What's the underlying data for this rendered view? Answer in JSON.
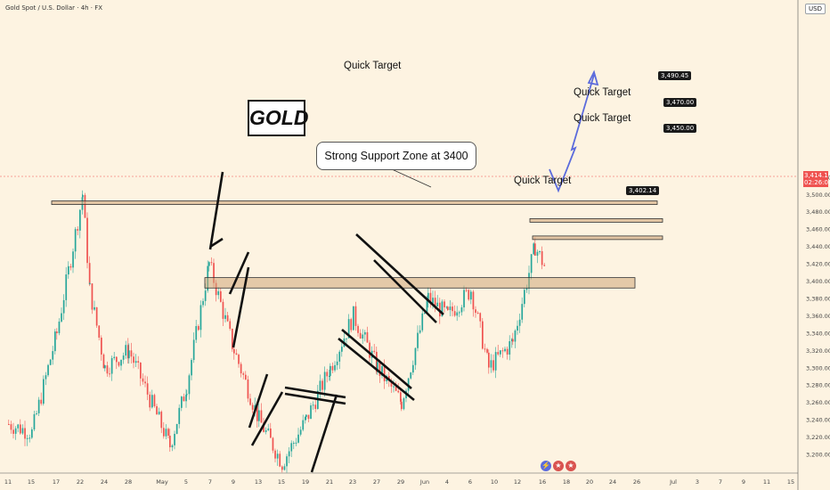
{
  "header": {
    "title": "Gold Spot / U.S. Dollar · 4h · FX",
    "currency": "USD"
  },
  "annotations": {
    "gold": "GOLD",
    "callout": "Strong Support Zone at 3400",
    "quick_target": "Quick Target"
  },
  "price_labels": {
    "t1": "3,490.45",
    "t2": "3,470.00",
    "t3": "3,450.00",
    "t4": "3,402.14",
    "current": "3,414.19",
    "countdown": "02:26:08"
  },
  "colors": {
    "up": "#26a69a",
    "down": "#ef5350",
    "zone": "#cfa57a",
    "arrow": "#5b6bdc"
  },
  "icons": [
    "lightning-icon",
    "us-flag-icon",
    "us-flag-icon"
  ],
  "chart_data": {
    "type": "candlestick",
    "title": "Gold Spot / U.S. Dollar · 4h · FX",
    "ylim": [
      3190,
      3535
    ],
    "y_ticks": [
      3200,
      3220,
      3240,
      3260,
      3280,
      3300,
      3320,
      3340,
      3360,
      3380,
      3400,
      3420,
      3440,
      3460,
      3480,
      3500,
      3520
    ],
    "x_ticks": [
      "11",
      "15",
      "17",
      "22",
      "24",
      "28",
      "May",
      "5",
      "7",
      "9",
      "13",
      "15",
      "19",
      "21",
      "23",
      "27",
      "29",
      "Jun",
      "4",
      "6",
      "10",
      "12",
      "16",
      "18",
      "20",
      "24",
      "26",
      "Jul",
      "3",
      "7",
      "9",
      "11",
      "15"
    ],
    "price_path": [
      {
        "date": "Apr 11",
        "price": 3235
      },
      {
        "date": "Apr 15",
        "price": 3225
      },
      {
        "date": "Apr 17",
        "price": 3340
      },
      {
        "date": "Apr 22",
        "price": 3500
      },
      {
        "date": "Apr 23",
        "price": 3390
      },
      {
        "date": "Apr 24",
        "price": 3300
      },
      {
        "date": "Apr 28",
        "price": 3320
      },
      {
        "date": "May 1",
        "price": 3210
      },
      {
        "date": "May 5",
        "price": 3280
      },
      {
        "date": "May 7",
        "price": 3420
      },
      {
        "date": "May 9",
        "price": 3320
      },
      {
        "date": "May 13",
        "price": 3240
      },
      {
        "date": "May 15",
        "price": 3190
      },
      {
        "date": "May 19",
        "price": 3240
      },
      {
        "date": "May 21",
        "price": 3300
      },
      {
        "date": "May 23",
        "price": 3360
      },
      {
        "date": "May 27",
        "price": 3300
      },
      {
        "date": "May 29",
        "price": 3260
      },
      {
        "date": "Jun 2",
        "price": 3380
      },
      {
        "date": "Jun 4",
        "price": 3360
      },
      {
        "date": "Jun 6",
        "price": 3390
      },
      {
        "date": "Jun 9",
        "price": 3300
      },
      {
        "date": "Jun 11",
        "price": 3330
      },
      {
        "date": "Jun 13",
        "price": 3440
      },
      {
        "date": "Jun 16",
        "price": 3414.19
      }
    ],
    "horizontal_levels": [
      3490.45,
      3470.0,
      3450.0,
      3402.14
    ],
    "projection": [
      {
        "date": "Jun 16",
        "price": 3402
      },
      {
        "date": "Jun 19",
        "price": 3445
      },
      {
        "date": "Jun 18",
        "price": 3440
      },
      {
        "date": "Jun 20",
        "price": 3490
      }
    ],
    "last_price": 3414.19
  }
}
